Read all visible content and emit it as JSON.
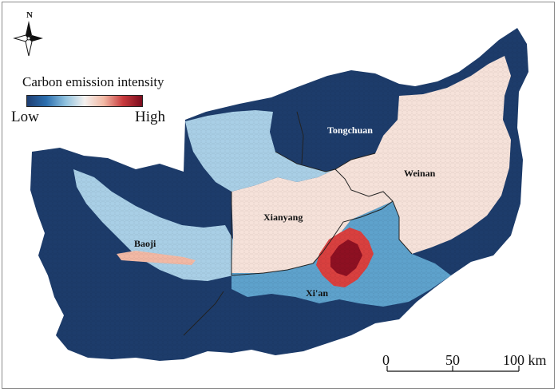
{
  "legend": {
    "title": "Carbon emission intensity",
    "low_label": "Low",
    "high_label": "High",
    "gradient_colors": [
      "#1f3f73",
      "#2c6fae",
      "#8fc1de",
      "#f4f1ef",
      "#f2b9a5",
      "#c83a3d",
      "#7b0c1e"
    ]
  },
  "north_arrow": {
    "label": "N"
  },
  "cities": [
    {
      "name": "Tongchuan",
      "color": "#ffffff"
    },
    {
      "name": "Weinan",
      "color": "#111111"
    },
    {
      "name": "Xianyang",
      "color": "#111111"
    },
    {
      "name": "Baoji",
      "color": "#111111"
    },
    {
      "name": "Xi'an",
      "color": "#111111"
    }
  ],
  "scale_bar": {
    "ticks": [
      "0",
      "50",
      "100 km"
    ]
  },
  "colors": {
    "very_low": "#1d3c6b",
    "low": "#5ea2cc",
    "low_mid": "#a9cfe6",
    "mid": "#f6e2da",
    "high": "#d9403f",
    "very_high": "#8e1022",
    "boundary": "#222222"
  }
}
